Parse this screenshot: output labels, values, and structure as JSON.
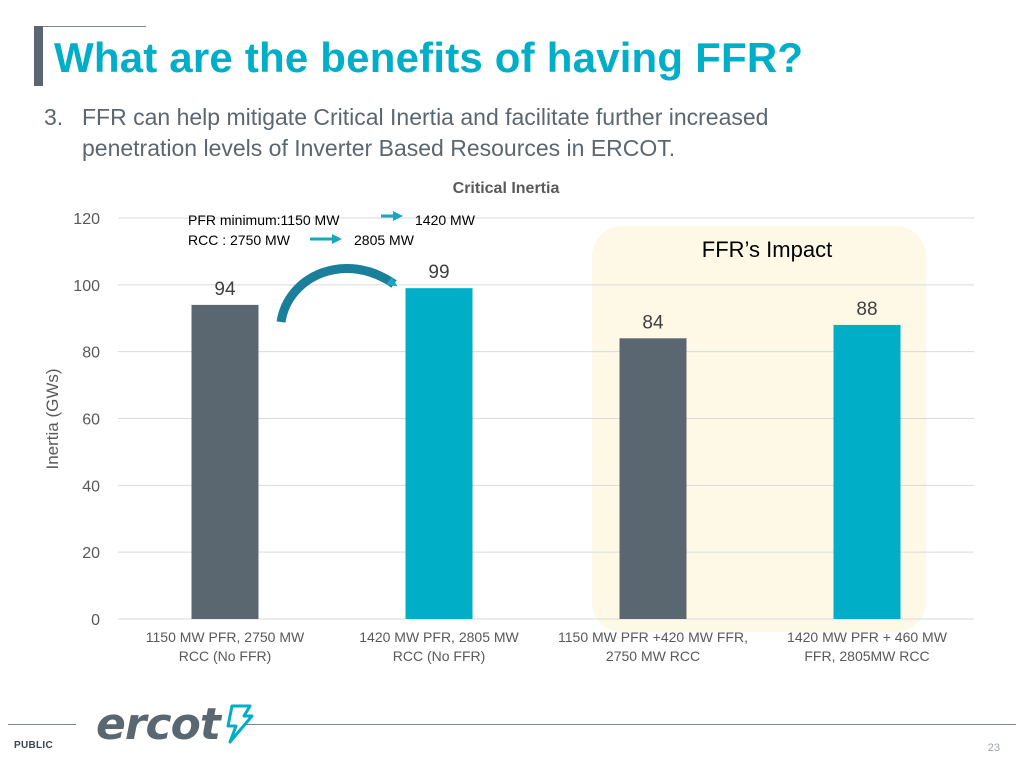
{
  "slide": {
    "title": "What are the benefits of having FFR?",
    "bullet_number": "3.",
    "bullet_text": "FFR can help mitigate Critical Inertia and facilitate further increased penetration levels of Inverter Based Resources in ERCOT."
  },
  "chart_data": {
    "type": "bar",
    "title": "Critical Inertia",
    "xlabel": "",
    "ylabel": "Inertia (GWs)",
    "ylim": [
      0,
      120
    ],
    "yticks": [
      0,
      20,
      40,
      60,
      80,
      100,
      120
    ],
    "grid": true,
    "categories": [
      "1150 MW PFR, 2750 MW RCC (No FFR)",
      "1420 MW PFR, 2805 MW RCC (No FFR)",
      "1150 MW PFR +420 MW FFR, 2750 MW RCC",
      "1420 MW PFR + 460 MW FFR, 2805MW RCC"
    ],
    "category_lines": [
      [
        "1150 MW PFR, 2750 MW",
        "RCC (No FFR)"
      ],
      [
        "1420 MW PFR, 2805 MW",
        "RCC (No FFR)"
      ],
      [
        "1150 MW PFR +420 MW FFR,",
        "2750 MW RCC"
      ],
      [
        "1420 MW PFR + 460 MW",
        "FFR, 2805MW RCC"
      ]
    ],
    "values": [
      94,
      99,
      84,
      88
    ],
    "data_labels": [
      "94",
      "99",
      "84",
      "88"
    ],
    "bar_colors": [
      "#5b6770",
      "#00aec7",
      "#5b6770",
      "#00aec7"
    ],
    "annotations": {
      "pfr_line_left": "PFR minimum:1150 MW",
      "pfr_line_right": "1420 MW",
      "rcc_line_left": "RCC : 2750 MW",
      "rcc_line_right": "2805 MW",
      "highlight_label": "FFR’s Impact"
    },
    "colors": {
      "gray_bar": "#5b6770",
      "teal_bar": "#00aec7",
      "highlight_fill": "#fdf9e6",
      "gridline": "#d9d9d9",
      "arrow": "#1ba6bf"
    }
  },
  "footer": {
    "logo_text": "ercot",
    "classification": "PUBLIC",
    "page_number": "23"
  }
}
